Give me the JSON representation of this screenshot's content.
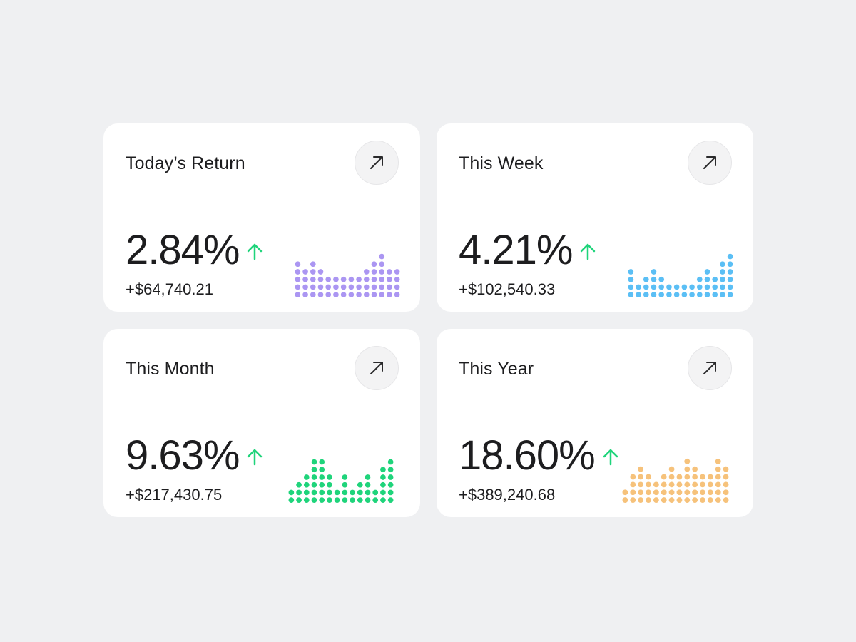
{
  "colors": {
    "background": "#eff0f2",
    "card": "#ffffff",
    "up_arrow": "#1fd47b"
  },
  "cards": [
    {
      "title": "Today’s Return",
      "percent": "2.84%",
      "amount": "+$64,740.21",
      "trend_icon": "arrow-up-icon",
      "action_icon": "arrow-up-right-icon",
      "dot_color": "#ab96f2",
      "bars": [
        5,
        4,
        5,
        4,
        3,
        3,
        3,
        3,
        3,
        4,
        5,
        6,
        4,
        4
      ]
    },
    {
      "title": "This Week",
      "percent": "4.21%",
      "amount": "+$102,540.33",
      "trend_icon": "arrow-up-icon",
      "action_icon": "arrow-up-right-icon",
      "dot_color": "#5bbff5",
      "bars": [
        4,
        2,
        3,
        4,
        3,
        2,
        2,
        2,
        2,
        3,
        4,
        3,
        5,
        6
      ]
    },
    {
      "title": "This Month",
      "percent": "9.63%",
      "amount": "+$217,430.75",
      "trend_icon": "arrow-up-icon",
      "action_icon": "arrow-up-right-icon",
      "dot_color": "#1fd47b",
      "bars": [
        2,
        3,
        4,
        6,
        6,
        4,
        2,
        4,
        2,
        3,
        4,
        2,
        5,
        6
      ]
    },
    {
      "title": "This Year",
      "percent": "18.60%",
      "amount": "+$389,240.68",
      "trend_icon": "arrow-up-icon",
      "action_icon": "arrow-up-right-icon",
      "dot_color": "#f6c27b",
      "bars": [
        2,
        4,
        5,
        4,
        3,
        4,
        5,
        4,
        6,
        5,
        4,
        4,
        6,
        5
      ]
    }
  ]
}
